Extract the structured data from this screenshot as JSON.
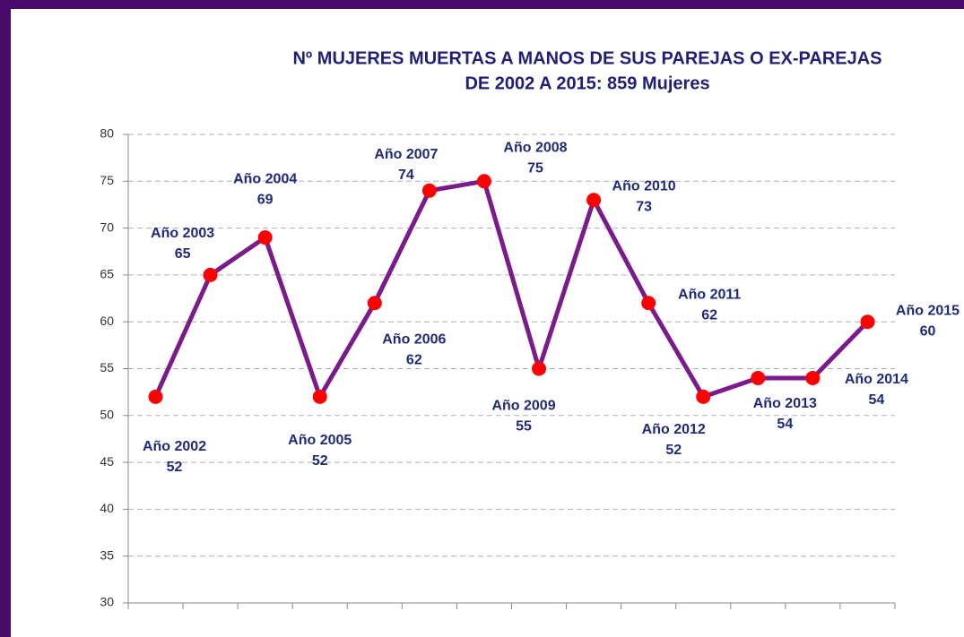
{
  "chart_data": {
    "type": "line",
    "title": "Nº MUJERES MUERTAS A MANOS DE SUS PAREJAS O EX-PAREJAS",
    "subtitle": "DE 2002 A 2015: 859 Mujeres",
    "categories": [
      "Año 2002",
      "Año 2003",
      "Año 2004",
      "Año 2005",
      "Año 2006",
      "Año 2007",
      "Año 2008",
      "Año 2009",
      "Año 2010",
      "Año 2011",
      "Año 2012",
      "Año 2013",
      "Año 2014",
      "Año 2015"
    ],
    "series": [
      {
        "name": "Mujeres",
        "color": "#7b1a8a",
        "marker_color": "#ff0000",
        "values": [
          52,
          65,
          69,
          52,
          62,
          74,
          75,
          55,
          73,
          62,
          52,
          54,
          54,
          60
        ]
      }
    ],
    "ylim": [
      30,
      80
    ],
    "yticks": [
      30,
      35,
      40,
      45,
      50,
      55,
      60,
      65,
      70,
      75,
      80
    ],
    "grid": true
  }
}
